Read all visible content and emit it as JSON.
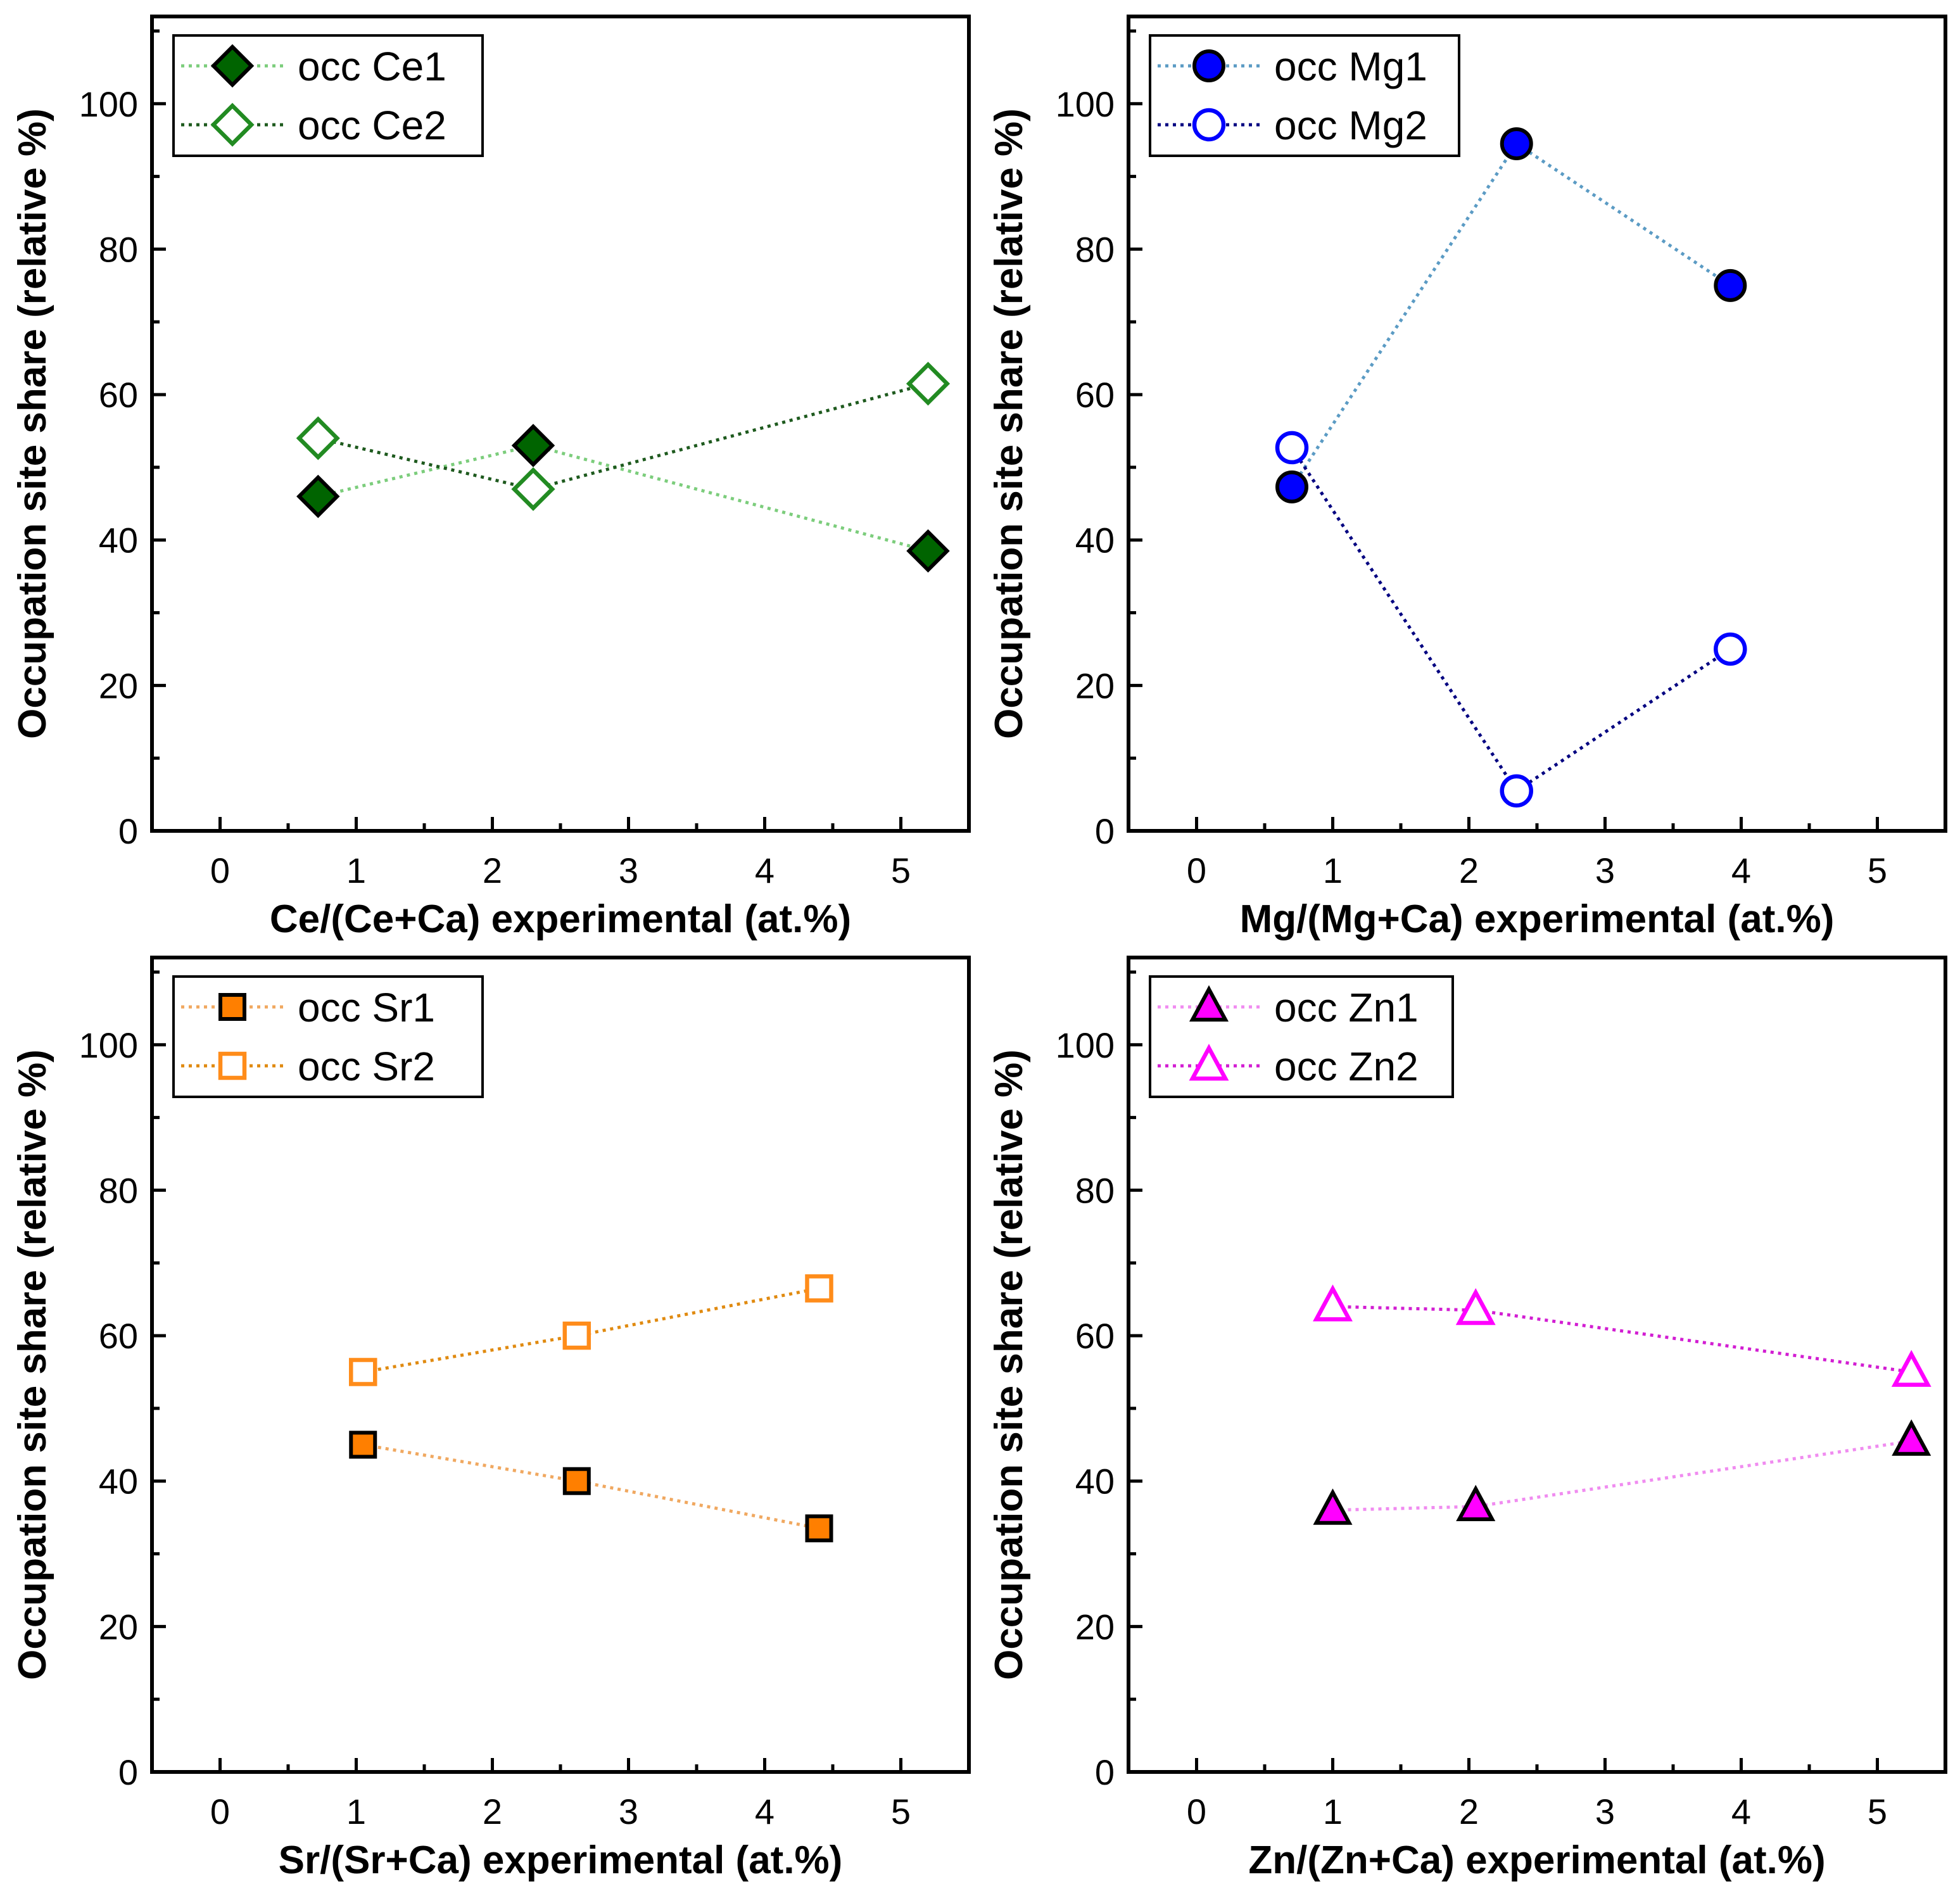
{
  "chart_data": [
    {
      "type": "scatter",
      "title": "",
      "xlabel": "Ce/(Ce+Ca) experimental (at.%)",
      "ylabel": "Occupation site share (relative %)",
      "xlim": [
        -0.5,
        5.5
      ],
      "ylim": [
        0,
        112
      ],
      "xticks": [
        0,
        1,
        2,
        3,
        4,
        5
      ],
      "yticks": [
        0,
        20,
        40,
        60,
        80,
        100
      ],
      "legend_position": "top-left",
      "series": [
        {
          "name": "occ Ce1",
          "x": [
            0.72,
            2.3,
            5.2
          ],
          "y": [
            46,
            53,
            38.5
          ],
          "marker": "diamond",
          "filled": true,
          "color": "#006400",
          "line_color": "#7ccd7c"
        },
        {
          "name": "occ Ce2",
          "x": [
            0.72,
            2.3,
            5.2
          ],
          "y": [
            54,
            47,
            61.5
          ],
          "marker": "diamond",
          "filled": false,
          "color": "#228b22",
          "line_color": "#1e5a1e"
        }
      ]
    },
    {
      "type": "scatter",
      "title": "",
      "xlabel": "Mg/(Mg+Ca) experimental (at.%)",
      "ylabel": "Occupation site share (relative %)",
      "xlim": [
        -0.5,
        5.5
      ],
      "ylim": [
        0,
        112
      ],
      "xticks": [
        0,
        1,
        2,
        3,
        4,
        5
      ],
      "yticks": [
        0,
        20,
        40,
        60,
        80,
        100
      ],
      "legend_position": "top-left",
      "series": [
        {
          "name": "occ Mg1",
          "x": [
            0.7,
            2.35,
            3.92
          ],
          "y": [
            47.3,
            94.5,
            75
          ],
          "marker": "circle",
          "filled": true,
          "color": "#0000ff",
          "line_color": "#5b9bc4"
        },
        {
          "name": "occ Mg2",
          "x": [
            0.7,
            2.35,
            3.92
          ],
          "y": [
            52.7,
            5.5,
            25
          ],
          "marker": "circle",
          "filled": false,
          "color": "#0000ff",
          "line_color": "#000080"
        }
      ]
    },
    {
      "type": "scatter",
      "title": "",
      "xlabel": "Sr/(Sr+Ca) experimental (at.%)",
      "ylabel": "Occupation site share (relative %)",
      "xlim": [
        -0.5,
        5.5
      ],
      "ylim": [
        0,
        112
      ],
      "xticks": [
        0,
        1,
        2,
        3,
        4,
        5
      ],
      "yticks": [
        0,
        20,
        40,
        60,
        80,
        100
      ],
      "legend_position": "top-left",
      "series": [
        {
          "name": "occ Sr1",
          "x": [
            1.05,
            2.62,
            4.4
          ],
          "y": [
            45,
            40,
            33.5
          ],
          "marker": "square",
          "filled": true,
          "color": "#ff7f00",
          "line_color": "#f0a860"
        },
        {
          "name": "occ Sr2",
          "x": [
            1.05,
            2.62,
            4.4
          ],
          "y": [
            55,
            60,
            66.5
          ],
          "marker": "square",
          "filled": false,
          "color": "#ff8c1a",
          "line_color": "#e08a10"
        }
      ]
    },
    {
      "type": "scatter",
      "title": "",
      "xlabel": "Zn/(Zn+Ca) experimental (at.%)",
      "ylabel": "Occupation site share (relative %)",
      "xlim": [
        -0.5,
        5.5
      ],
      "ylim": [
        0,
        112
      ],
      "xticks": [
        0,
        1,
        2,
        3,
        4,
        5
      ],
      "yticks": [
        0,
        20,
        40,
        60,
        80,
        100
      ],
      "legend_position": "top-left",
      "series": [
        {
          "name": "occ Zn1",
          "x": [
            1.0,
            2.05,
            5.25
          ],
          "y": [
            36,
            36.5,
            45.5
          ],
          "marker": "triangle",
          "filled": true,
          "color": "#ff00ff",
          "line_color": "#f08cf0"
        },
        {
          "name": "occ Zn2",
          "x": [
            1.0,
            2.05,
            5.25
          ],
          "y": [
            64,
            63.5,
            55
          ],
          "marker": "triangle",
          "filled": false,
          "color": "#ff00ff",
          "line_color": "#d21ed2"
        }
      ]
    }
  ]
}
